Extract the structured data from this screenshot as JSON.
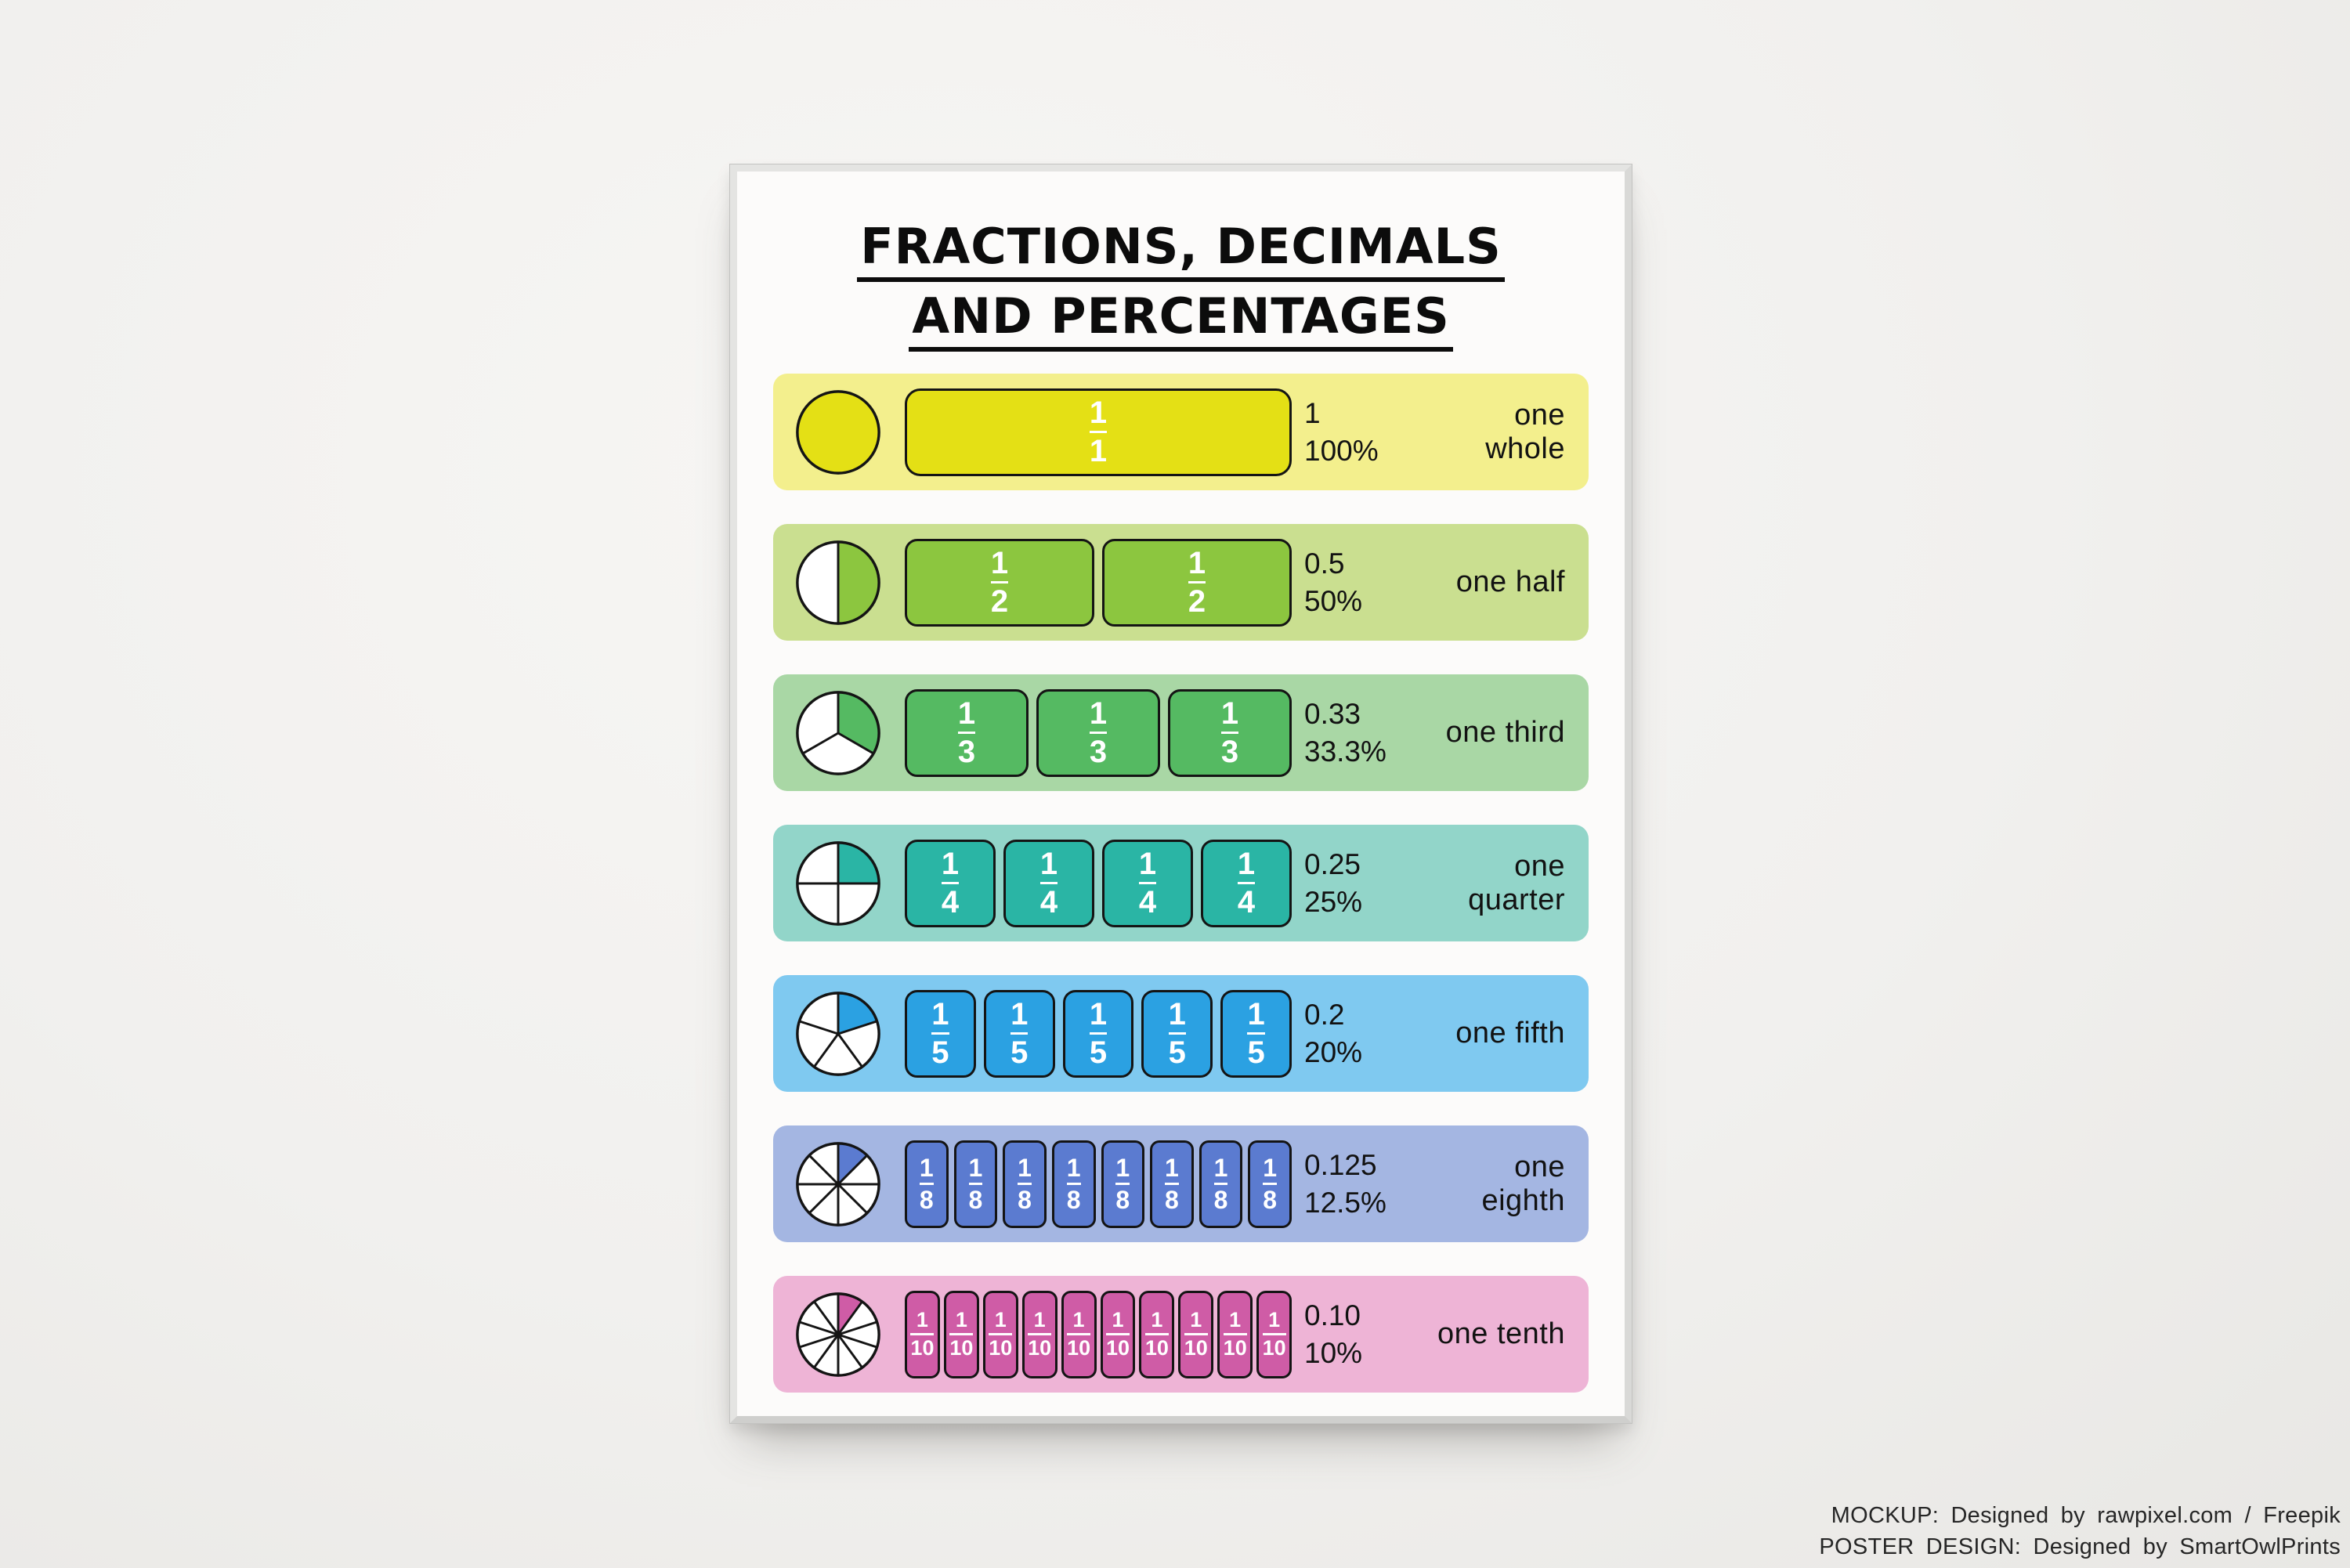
{
  "poster": {
    "title_line1": "FRACTIONS, DECIMALS",
    "title_line2": "AND PERCENTAGES",
    "rows": [
      {
        "name": "one whole",
        "numerator": "1",
        "denominator": "1",
        "segments": 1,
        "decimal": "1",
        "percent": "100%",
        "band_color": "#f3ef8d",
        "fill_color": "#e4e015"
      },
      {
        "name": "one half",
        "numerator": "1",
        "denominator": "2",
        "segments": 2,
        "decimal": "0.5",
        "percent": "50%",
        "band_color": "#cadf90",
        "fill_color": "#8cc63f"
      },
      {
        "name": "one third",
        "numerator": "1",
        "denominator": "3",
        "segments": 3,
        "decimal": "0.33",
        "percent": "33.3%",
        "band_color": "#a9d7a5",
        "fill_color": "#55ba62"
      },
      {
        "name": "one quarter",
        "numerator": "1",
        "denominator": "4",
        "segments": 4,
        "decimal": "0.25",
        "percent": "25%",
        "band_color": "#92d5c9",
        "fill_color": "#2ab5a5"
      },
      {
        "name": "one fifth",
        "numerator": "1",
        "denominator": "5",
        "segments": 5,
        "decimal": "0.2",
        "percent": "20%",
        "band_color": "#7fc9f0",
        "fill_color": "#2ba1e2"
      },
      {
        "name": "one eighth",
        "numerator": "1",
        "denominator": "8",
        "segments": 8,
        "decimal": "0.125",
        "percent": "12.5%",
        "band_color": "#a4b6e2",
        "fill_color": "#5b7bd0"
      },
      {
        "name": "one tenth",
        "numerator": "1",
        "denominator": "10",
        "segments": 10,
        "decimal": "0.10",
        "percent": "10%",
        "band_color": "#eeb4d6",
        "fill_color": "#cf5ca6"
      }
    ]
  },
  "credits": {
    "line1": "MOCKUP: Designed by rawpixel.com / Freepik",
    "line2": "POSTER DESIGN: Designed by SmartOwlPrints"
  }
}
